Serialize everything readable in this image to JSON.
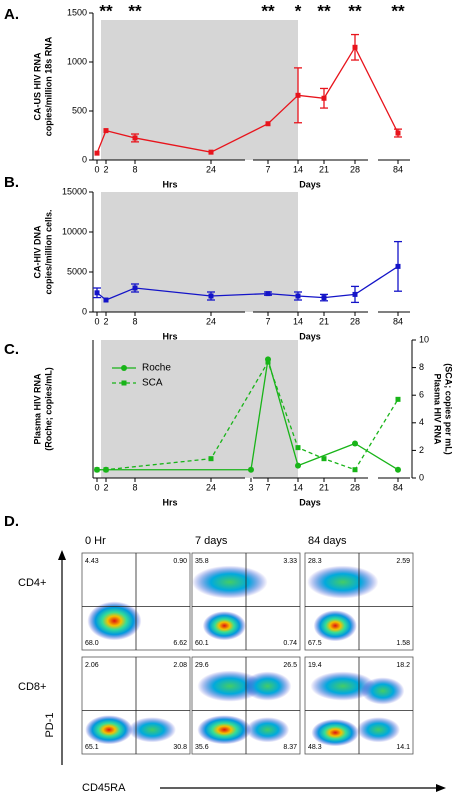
{
  "chart_data": [
    {
      "type": "line",
      "panel_label": "A.",
      "ylabel": [
        "CA-US HIV RNA",
        "copies/million 18s RNA"
      ],
      "xlabels": [
        "Hrs",
        "Days"
      ],
      "categories": [
        "0",
        "2",
        "8",
        "24",
        "7",
        "14",
        "21",
        "28",
        "84"
      ],
      "significance": [
        null,
        "**",
        "**",
        null,
        "**",
        "*",
        "**",
        "**",
        "**"
      ],
      "series": [
        {
          "color": "#e8141c",
          "marker": "square",
          "dashed": false,
          "values": [
            70,
            300,
            225,
            80,
            370,
            660,
            630,
            1150,
            275
          ],
          "errors": [
            null,
            null,
            40,
            null,
            null,
            280,
            100,
            130,
            40
          ]
        }
      ],
      "ylim": [
        0,
        1500
      ],
      "yticks": [
        0,
        500,
        1000,
        1500
      ]
    },
    {
      "type": "line",
      "panel_label": "B.",
      "ylabel": [
        "CA-HIV DNA",
        "copies/million cells."
      ],
      "xlabels": [
        "Hrs",
        "Days"
      ],
      "categories": [
        "0",
        "2",
        "8",
        "24",
        "7",
        "14",
        "21",
        "28",
        "84"
      ],
      "series": [
        {
          "color": "#1414c8",
          "marker": "square",
          "dashed": false,
          "values": [
            2400,
            1500,
            3000,
            2000,
            2300,
            2000,
            1800,
            2200,
            5700
          ],
          "errors": [
            600,
            null,
            500,
            500,
            200,
            500,
            400,
            1000,
            3100
          ]
        }
      ],
      "ylim": [
        0,
        15000
      ],
      "yticks": [
        0,
        5000,
        10000,
        15000
      ]
    },
    {
      "type": "line",
      "panel_label": "C.",
      "ylabel": [
        "Plasma HIV RNA",
        "(Roche; copies/mL)"
      ],
      "y2label": [
        "Plasma HIV RNA",
        "(SCA; copies per mL)"
      ],
      "xlabels": [
        "Hrs",
        "Days"
      ],
      "categories": [
        "0",
        "2",
        "8",
        "24",
        "3",
        "7",
        "14",
        "21",
        "28",
        "84"
      ],
      "series": [
        {
          "name": "Roche",
          "color": "#18b418",
          "marker": "circle",
          "dashed": false,
          "x": [
            "0",
            "2",
            "3",
            "7",
            "14",
            "28",
            "84"
          ],
          "values": [
            0.6,
            0.6,
            0.6,
            8.6,
            0.9,
            2.5,
            0.6
          ]
        },
        {
          "name": "SCA",
          "color": "#18b418",
          "marker": "square",
          "dashed": true,
          "axis": "y2",
          "x": [
            "0",
            "2",
            "24",
            "7",
            "14",
            "21",
            "28",
            "84"
          ],
          "values": [
            0.6,
            0.6,
            1.4,
            8.4,
            2.2,
            1.4,
            0.6,
            5.7
          ]
        }
      ],
      "legend_color": "#1a1aa0",
      "ylim": [
        0,
        10
      ],
      "y2lim": [
        0,
        10
      ],
      "y2ticks": [
        0,
        2,
        4,
        6,
        8,
        10
      ]
    }
  ],
  "panel_d": {
    "label": "D.",
    "columns": [
      "0 Hr",
      "7 days",
      "84 days"
    ],
    "rows": [
      "CD4+",
      "CD8+"
    ],
    "y_axis": "PD-1",
    "x_axis": "CD45RA",
    "quadrants": [
      [
        [
          "4.43",
          "0.90",
          "68.0",
          "6.62"
        ],
        [
          "35.8",
          "3.33",
          "60.1",
          "0.74"
        ],
        [
          "28.3",
          "2.59",
          "67.5",
          "1.58"
        ]
      ],
      [
        [
          "2.06",
          "2.08",
          "65.1",
          "30.8"
        ],
        [
          "29.6",
          "26.5",
          "35.6",
          "8.37"
        ],
        [
          "19.4",
          "18.2",
          "48.3",
          "14.1"
        ]
      ]
    ]
  }
}
